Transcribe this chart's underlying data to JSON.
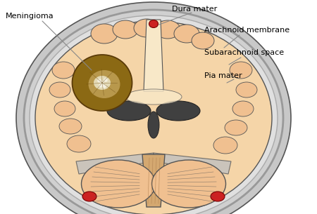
{
  "background_color": "#ffffff",
  "labels": {
    "meningioma": "Meningioma",
    "dura_mater": "Dura mater",
    "arachnoid": "Arachnoid membrane",
    "subarachnoid": "Subarachnoid space",
    "pia_mater": "Pia mater"
  },
  "colors": {
    "skull_outer": "#c8c8c8",
    "dura": "#b0b0b0",
    "arachnoid_layer": "#d0d0d0",
    "subarachnoid_space": "#e0e0e0",
    "brain_cortex": "#f0c090",
    "brain_inner": "#f5d5a8",
    "white_matter": "#f8e8c8",
    "ventricle": "#404040",
    "meningioma_body": "#8B6914",
    "meningioma_core": "#c8a860",
    "meningioma_bright": "#e8e0c0",
    "cerebellum": "#f0c090",
    "brainstem": "#d4a870",
    "red_accent": "#cc2222",
    "outline": "#555555",
    "line_color": "#888888",
    "text_color": "#000000"
  }
}
